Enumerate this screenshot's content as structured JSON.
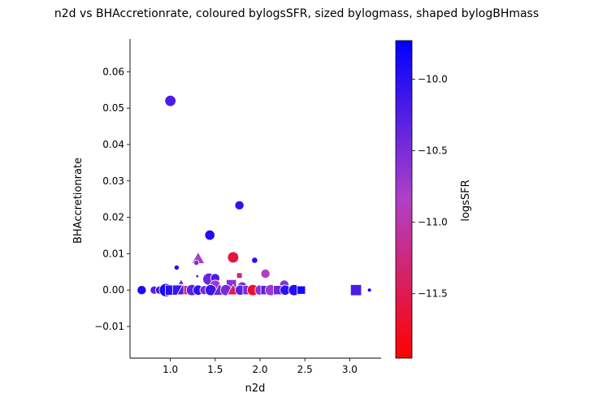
{
  "chart_data": {
    "type": "scatter",
    "title": "n2d vs BHAccretionrate, coloured bylogsSFR, sized bylogmass, shaped bylogBHmass",
    "xlabel": "n2d",
    "ylabel": "BHAccretionrate",
    "colorbar_label": "logsSFR",
    "xlim": [
      0.55,
      3.35
    ],
    "ylim": [
      -0.0187,
      0.069
    ],
    "xticks": [
      "1.0",
      "1.5",
      "2.0",
      "2.5",
      "3.0"
    ],
    "yticks": [
      "−0.01",
      "0.00",
      "0.01",
      "0.02",
      "0.03",
      "0.04",
      "0.05",
      "0.06"
    ],
    "colorbar_range": [
      -11.95,
      -9.73
    ],
    "colorbar_ticks": [
      "−10.0",
      "−10.5",
      "−11.0",
      "−11.5"
    ],
    "colorbar_tick_values": [
      -10.0,
      -10.5,
      -11.0,
      -11.5
    ],
    "colormap": [
      "#ff0000",
      "#b040c8",
      "#0000ff"
    ],
    "points": [
      {
        "x": 1.0,
        "y": 0.052,
        "c": -10.2,
        "size": 11,
        "marker": "circle"
      },
      {
        "x": 1.77,
        "y": 0.0233,
        "c": -10.05,
        "size": 9,
        "marker": "circle"
      },
      {
        "x": 1.44,
        "y": 0.0151,
        "c": -9.95,
        "size": 10,
        "marker": "circle"
      },
      {
        "x": 1.7,
        "y": 0.009,
        "c": -11.6,
        "size": 11,
        "marker": "circle"
      },
      {
        "x": 1.31,
        "y": 0.0087,
        "c": -10.8,
        "size": 11,
        "marker": "triangle"
      },
      {
        "x": 1.94,
        "y": 0.0082,
        "c": -10.0,
        "size": 6,
        "marker": "circle"
      },
      {
        "x": 1.29,
        "y": 0.0075,
        "c": -10.5,
        "size": 5,
        "marker": "circle"
      },
      {
        "x": 1.07,
        "y": 0.0062,
        "c": -9.95,
        "size": 5,
        "marker": "circle"
      },
      {
        "x": 2.06,
        "y": 0.0045,
        "c": -10.9,
        "size": 9,
        "marker": "circle"
      },
      {
        "x": 1.77,
        "y": 0.004,
        "c": -11.3,
        "size": 6,
        "marker": "square"
      },
      {
        "x": 1.3,
        "y": 0.0038,
        "c": -10.3,
        "size": 3,
        "marker": "circle"
      },
      {
        "x": 1.43,
        "y": 0.003,
        "c": -10.4,
        "size": 12,
        "marker": "circle"
      },
      {
        "x": 1.5,
        "y": 0.0033,
        "c": -10.2,
        "size": 9,
        "marker": "circle"
      },
      {
        "x": 1.12,
        "y": 0.0022,
        "c": -10.4,
        "size": 5,
        "marker": "triangle"
      },
      {
        "x": 1.68,
        "y": 0.0015,
        "c": -10.6,
        "size": 11,
        "marker": "square"
      },
      {
        "x": 2.27,
        "y": 0.0015,
        "c": -10.6,
        "size": 9,
        "marker": "circle"
      },
      {
        "x": 1.5,
        "y": 0.0012,
        "c": -10.7,
        "size": 11,
        "marker": "circle"
      },
      {
        "x": 1.8,
        "y": 0.001,
        "c": -10.4,
        "size": 9,
        "marker": "circle"
      },
      {
        "x": 0.68,
        "y": 0.0,
        "c": -9.9,
        "size": 9,
        "marker": "circle"
      },
      {
        "x": 0.82,
        "y": 0.0,
        "c": -10.3,
        "size": 8,
        "marker": "circle"
      },
      {
        "x": 0.88,
        "y": 0.0,
        "c": -10.1,
        "size": 8,
        "marker": "circle"
      },
      {
        "x": 0.95,
        "y": 0.0,
        "c": -9.9,
        "size": 13,
        "marker": "circle"
      },
      {
        "x": 1.0,
        "y": 0.0,
        "c": -10.0,
        "size": 11,
        "marker": "square"
      },
      {
        "x": 1.08,
        "y": 0.0,
        "c": -10.1,
        "size": 11,
        "marker": "square"
      },
      {
        "x": 1.14,
        "y": 0.0,
        "c": -10.2,
        "size": 10,
        "marker": "triangle"
      },
      {
        "x": 1.2,
        "y": 0.0,
        "c": -11.3,
        "size": 10,
        "marker": "square"
      },
      {
        "x": 1.24,
        "y": 0.0,
        "c": -10.3,
        "size": 11,
        "marker": "circle"
      },
      {
        "x": 1.31,
        "y": 0.0,
        "c": -10.0,
        "size": 10,
        "marker": "circle"
      },
      {
        "x": 1.38,
        "y": 0.0,
        "c": -10.5,
        "size": 9,
        "marker": "circle"
      },
      {
        "x": 1.45,
        "y": 0.0,
        "c": -10.1,
        "size": 11,
        "marker": "circle"
      },
      {
        "x": 1.55,
        "y": 0.0,
        "c": -10.4,
        "size": 11,
        "marker": "triangle"
      },
      {
        "x": 1.62,
        "y": 0.0,
        "c": -10.5,
        "size": 11,
        "marker": "circle"
      },
      {
        "x": 1.7,
        "y": 0.0,
        "c": -11.5,
        "size": 10,
        "marker": "triangle"
      },
      {
        "x": 1.78,
        "y": 0.0,
        "c": -10.3,
        "size": 10,
        "marker": "circle"
      },
      {
        "x": 1.86,
        "y": 0.0,
        "c": -10.5,
        "size": 10,
        "marker": "square"
      },
      {
        "x": 1.92,
        "y": 0.0,
        "c": -11.7,
        "size": 11,
        "marker": "circle"
      },
      {
        "x": 2.0,
        "y": 0.0,
        "c": -10.6,
        "size": 10,
        "marker": "circle"
      },
      {
        "x": 2.06,
        "y": 0.0,
        "c": -10.3,
        "size": 10,
        "marker": "square"
      },
      {
        "x": 2.12,
        "y": 0.0,
        "c": -10.7,
        "size": 11,
        "marker": "circle"
      },
      {
        "x": 2.2,
        "y": 0.0,
        "c": -10.4,
        "size": 10,
        "marker": "square"
      },
      {
        "x": 2.28,
        "y": 0.0,
        "c": -10.0,
        "size": 10,
        "marker": "circle"
      },
      {
        "x": 2.38,
        "y": 0.0,
        "c": -9.95,
        "size": 11,
        "marker": "circle"
      },
      {
        "x": 2.46,
        "y": 0.0,
        "c": -9.85,
        "size": 9,
        "marker": "square"
      },
      {
        "x": 3.07,
        "y": 0.0,
        "c": -10.2,
        "size": 12,
        "marker": "square"
      },
      {
        "x": 3.22,
        "y": 0.0,
        "c": -9.85,
        "size": 4,
        "marker": "circle"
      }
    ]
  }
}
